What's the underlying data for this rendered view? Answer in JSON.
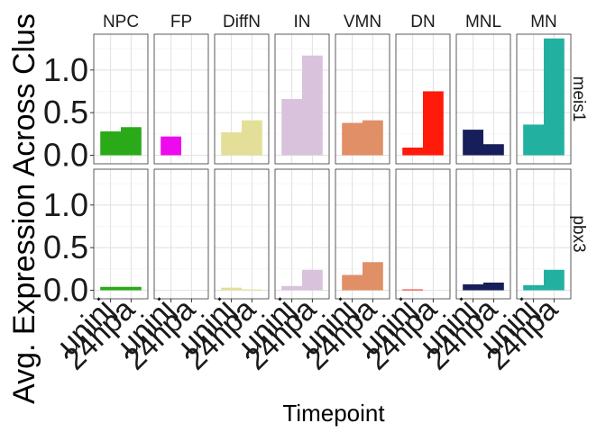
{
  "chart_data": {
    "type": "bar",
    "facet_columns": [
      "NPC",
      "FP",
      "DiffN",
      "IN",
      "VMN",
      "DN",
      "MNL",
      "MN"
    ],
    "facet_rows": [
      "meis1",
      "pbx3"
    ],
    "categories": [
      "uninj",
      "24hpa"
    ],
    "xlabel": "Timepoint",
    "ylabel": "Avg. Expression Across Clus",
    "ylim": [
      -0.1,
      1.42
    ],
    "y_ticks": [
      "0.0",
      "0.5",
      "1.0"
    ],
    "y_tick_values": [
      0.0,
      0.5,
      1.0
    ],
    "grid": true,
    "colors": {
      "NPC": "#2aaa19",
      "FP": "#ee0aee",
      "DiffN": "#e3df98",
      "IN": "#d8c2dc",
      "VMN": "#e08f67",
      "DN": "#ff1a0a",
      "MNL": "#171f5a",
      "MN": "#22b0a0"
    },
    "values": {
      "meis1": {
        "NPC": [
          0.28,
          0.33
        ],
        "FP": [
          0.22,
          0.0
        ],
        "DiffN": [
          0.27,
          0.41
        ],
        "IN": [
          0.66,
          1.17
        ],
        "VMN": [
          0.38,
          0.41
        ],
        "DN": [
          0.09,
          0.75
        ],
        "MNL": [
          0.3,
          0.13
        ],
        "MN": [
          0.36,
          1.37
        ]
      },
      "pbx3": {
        "NPC": [
          0.04,
          0.04
        ],
        "FP": [
          0.0,
          0.0
        ],
        "DiffN": [
          0.03,
          0.01
        ],
        "IN": [
          0.05,
          0.24
        ],
        "VMN": [
          0.18,
          0.33
        ],
        "DN": [
          0.01,
          0.0
        ],
        "MNL": [
          0.07,
          0.09
        ],
        "MN": [
          0.06,
          0.24
        ]
      }
    }
  }
}
